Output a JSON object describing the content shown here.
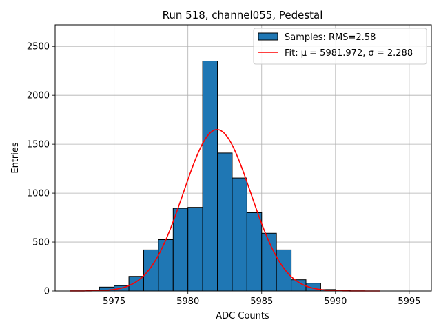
{
  "chart_data": {
    "type": "bar",
    "title": "Run 518, channel055, Pedestal",
    "xlabel": "ADC Counts",
    "ylabel": "Entries",
    "xlim": [
      5971,
      5996.5
    ],
    "ylim": [
      0,
      2720
    ],
    "xticks": [
      5975,
      5980,
      5985,
      5990,
      5995
    ],
    "yticks": [
      0,
      500,
      1000,
      1500,
      2000,
      2500
    ],
    "grid": true,
    "legend_position": "top-right",
    "histogram": {
      "name": "Samples: RMS=2.58",
      "color": "#1f77b4",
      "edge_color": "#000000",
      "bin_width": 1,
      "bins": [
        {
          "x0": 5974,
          "count": 40
        },
        {
          "x0": 5975,
          "count": 55
        },
        {
          "x0": 5976,
          "count": 150
        },
        {
          "x0": 5977,
          "count": 420
        },
        {
          "x0": 5978,
          "count": 525
        },
        {
          "x0": 5979,
          "count": 845
        },
        {
          "x0": 5980,
          "count": 855
        },
        {
          "x0": 5981,
          "count": 2350
        },
        {
          "x0": 5982,
          "count": 1410
        },
        {
          "x0": 5983,
          "count": 1155
        },
        {
          "x0": 5984,
          "count": 800
        },
        {
          "x0": 5985,
          "count": 590
        },
        {
          "x0": 5986,
          "count": 420
        },
        {
          "x0": 5987,
          "count": 115
        },
        {
          "x0": 5988,
          "count": 80
        },
        {
          "x0": 5989,
          "count": 15
        },
        {
          "x0": 5990,
          "count": 5
        }
      ]
    },
    "fit": {
      "name": "Fit: μ = 5981.972, σ = 2.288",
      "mu": 5981.972,
      "sigma": 2.288,
      "amplitude": 1650,
      "x_range": [
        5972,
        5993
      ],
      "color": "#ff0000"
    }
  }
}
